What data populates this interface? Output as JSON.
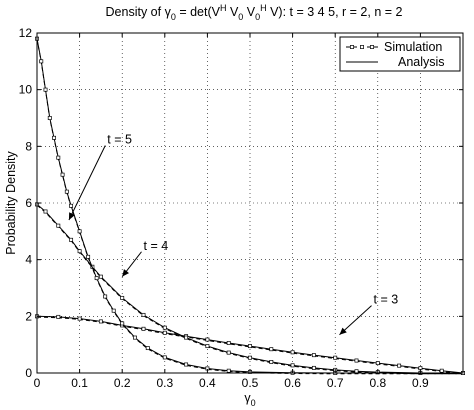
{
  "chart_data": {
    "type": "line",
    "title": "Density of γ0 = det(V^H V0 V0^H V): t = 3 4 5, r = 2, n = 2",
    "title_parts": {
      "prefix": "Density of γ",
      "sub0": "0",
      "eq": " = det(V",
      "supH1": "H",
      "v0a": " V",
      "sub1": "0",
      "v0b": " V",
      "sub2": "0",
      "supH2": "H",
      "suffix": " V): t = 3  4  5, r = 2, n = 2"
    },
    "xlabel": "γ",
    "xlabel_sub": "0",
    "ylabel": "Probability Density",
    "xlim": [
      0,
      1
    ],
    "ylim": [
      0,
      12
    ],
    "xticks": [
      0,
      0.1,
      0.2,
      0.3,
      0.4,
      0.5,
      0.6,
      0.7,
      0.8,
      0.9
    ],
    "xtick_labels": [
      "0",
      "0.1",
      "0.2",
      "0.3",
      "0.4",
      "0.5",
      "0.6",
      "0.7",
      "0.8",
      "0.9"
    ],
    "yticks": [
      0,
      2,
      4,
      6,
      8,
      10,
      12
    ],
    "ytick_labels": [
      "0",
      "2",
      "4",
      "6",
      "8",
      "10",
      "12"
    ],
    "grid": true,
    "legend_position": "top-right",
    "legend": [
      {
        "label": "Simulation",
        "style": "dashed-marker"
      },
      {
        "label": "Analysis",
        "style": "solid"
      }
    ],
    "series": [
      {
        "t": 3,
        "points": [
          [
            0,
            2.0
          ],
          [
            0.05,
            1.98
          ],
          [
            0.1,
            1.92
          ],
          [
            0.15,
            1.82
          ],
          [
            0.2,
            1.68
          ],
          [
            0.25,
            1.56
          ],
          [
            0.3,
            1.42
          ],
          [
            0.35,
            1.3
          ],
          [
            0.4,
            1.18
          ],
          [
            0.45,
            1.06
          ],
          [
            0.5,
            0.95
          ],
          [
            0.55,
            0.84
          ],
          [
            0.6,
            0.73
          ],
          [
            0.65,
            0.63
          ],
          [
            0.7,
            0.54
          ],
          [
            0.75,
            0.44
          ],
          [
            0.8,
            0.35
          ],
          [
            0.85,
            0.26
          ],
          [
            0.9,
            0.17
          ],
          [
            0.95,
            0.08
          ],
          [
            1.0,
            0.0
          ]
        ]
      },
      {
        "t": 4,
        "points": [
          [
            0,
            5.95
          ],
          [
            0.02,
            5.7
          ],
          [
            0.05,
            5.2
          ],
          [
            0.08,
            4.7
          ],
          [
            0.1,
            4.3
          ],
          [
            0.13,
            3.75
          ],
          [
            0.15,
            3.4
          ],
          [
            0.2,
            2.65
          ],
          [
            0.25,
            2.05
          ],
          [
            0.3,
            1.6
          ],
          [
            0.35,
            1.25
          ],
          [
            0.4,
            0.95
          ],
          [
            0.45,
            0.72
          ],
          [
            0.5,
            0.54
          ],
          [
            0.55,
            0.39
          ],
          [
            0.6,
            0.27
          ],
          [
            0.65,
            0.18
          ],
          [
            0.7,
            0.11
          ],
          [
            0.75,
            0.06
          ],
          [
            0.8,
            0.03
          ],
          [
            0.9,
            0.0
          ],
          [
            1.0,
            0.0
          ]
        ]
      },
      {
        "t": 5,
        "points": [
          [
            0,
            11.8
          ],
          [
            0.01,
            11.0
          ],
          [
            0.02,
            10.0
          ],
          [
            0.03,
            9.0
          ],
          [
            0.04,
            8.3
          ],
          [
            0.05,
            7.6
          ],
          [
            0.06,
            7.0
          ],
          [
            0.07,
            6.4
          ],
          [
            0.08,
            5.9
          ],
          [
            0.1,
            5.0
          ],
          [
            0.12,
            4.1
          ],
          [
            0.14,
            3.35
          ],
          [
            0.16,
            2.7
          ],
          [
            0.18,
            2.2
          ],
          [
            0.2,
            1.75
          ],
          [
            0.23,
            1.25
          ],
          [
            0.26,
            0.88
          ],
          [
            0.3,
            0.55
          ],
          [
            0.35,
            0.3
          ],
          [
            0.4,
            0.16
          ],
          [
            0.45,
            0.08
          ],
          [
            0.5,
            0.04
          ],
          [
            0.6,
            0.01
          ],
          [
            0.7,
            0.0
          ],
          [
            1.0,
            0.0
          ]
        ]
      }
    ],
    "annotations": [
      {
        "text": "t = 5",
        "series_t": 5,
        "label_at": [
          0.165,
          8.1
        ],
        "arrow_to": [
          0.075,
          5.4
        ]
      },
      {
        "text": "t = 4",
        "series_t": 4,
        "label_at": [
          0.25,
          4.35
        ],
        "arrow_to": [
          0.2,
          3.4
        ]
      },
      {
        "text": "t = 3",
        "series_t": 3,
        "label_at": [
          0.79,
          2.45
        ],
        "arrow_to": [
          0.71,
          1.35
        ]
      }
    ]
  }
}
